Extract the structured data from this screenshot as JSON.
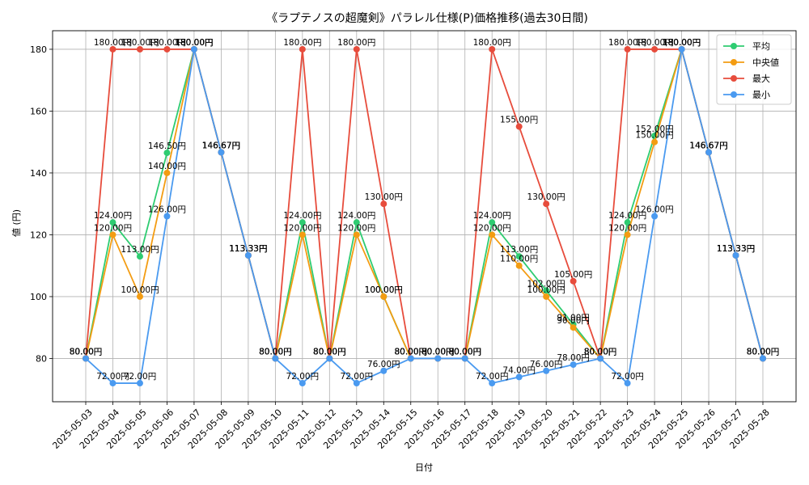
{
  "chart_data": {
    "type": "line",
    "title": "《ラプテノスの超魔剣》パラレル仕様(P)価格推移(過去30日間)",
    "xlabel": "日付",
    "ylabel": "値 (円)",
    "ylim": [
      66,
      186
    ],
    "yticks": [
      80,
      100,
      120,
      140,
      160,
      180
    ],
    "grid": true,
    "legend_position": "top-right",
    "value_suffix": "円",
    "categories": [
      "2025-05-03",
      "2025-05-04",
      "2025-05-05",
      "2025-05-06",
      "2025-05-07",
      "2025-05-08",
      "2025-05-09",
      "2025-05-10",
      "2025-05-11",
      "2025-05-12",
      "2025-05-13",
      "2025-05-14",
      "2025-05-15",
      "2025-05-16",
      "2025-05-17",
      "2025-05-18",
      "2025-05-19",
      "2025-05-20",
      "2025-05-21",
      "2025-05-22",
      "2025-05-23",
      "2025-05-24",
      "2025-05-25",
      "2025-05-26",
      "2025-05-27",
      "2025-05-28"
    ],
    "series": [
      {
        "name": "平均",
        "color": "#2ecc71",
        "values": [
          80,
          124,
          113,
          146.5,
          180,
          146.67,
          113.33,
          80,
          124,
          80,
          124,
          100,
          80,
          80,
          80,
          124,
          113,
          102,
          91,
          80,
          124,
          152,
          180,
          146.67,
          113.33,
          80
        ]
      },
      {
        "name": "中央値",
        "color": "#f39c12",
        "values": [
          80,
          120,
          100,
          140,
          180,
          146.67,
          113.33,
          80,
          120,
          80,
          120,
          100,
          80,
          80,
          80,
          120,
          110,
          100,
          90,
          80,
          120,
          150,
          180,
          146.67,
          113.33,
          80
        ]
      },
      {
        "name": "最大",
        "color": "#e74c3c",
        "values": [
          80,
          180,
          180,
          180,
          180,
          146.67,
          113.33,
          80,
          180,
          80,
          180,
          130,
          80,
          80,
          80,
          180,
          155,
          130,
          105,
          80,
          180,
          180,
          180,
          146.67,
          113.33,
          80
        ]
      },
      {
        "name": "最小",
        "color": "#4a9af0",
        "values": [
          80,
          72,
          72,
          126,
          180,
          146.67,
          113.33,
          80,
          72,
          80,
          72,
          76,
          80,
          80,
          80,
          72,
          74,
          76,
          78,
          80,
          72,
          126,
          180,
          146.67,
          113.33,
          80
        ]
      }
    ]
  }
}
